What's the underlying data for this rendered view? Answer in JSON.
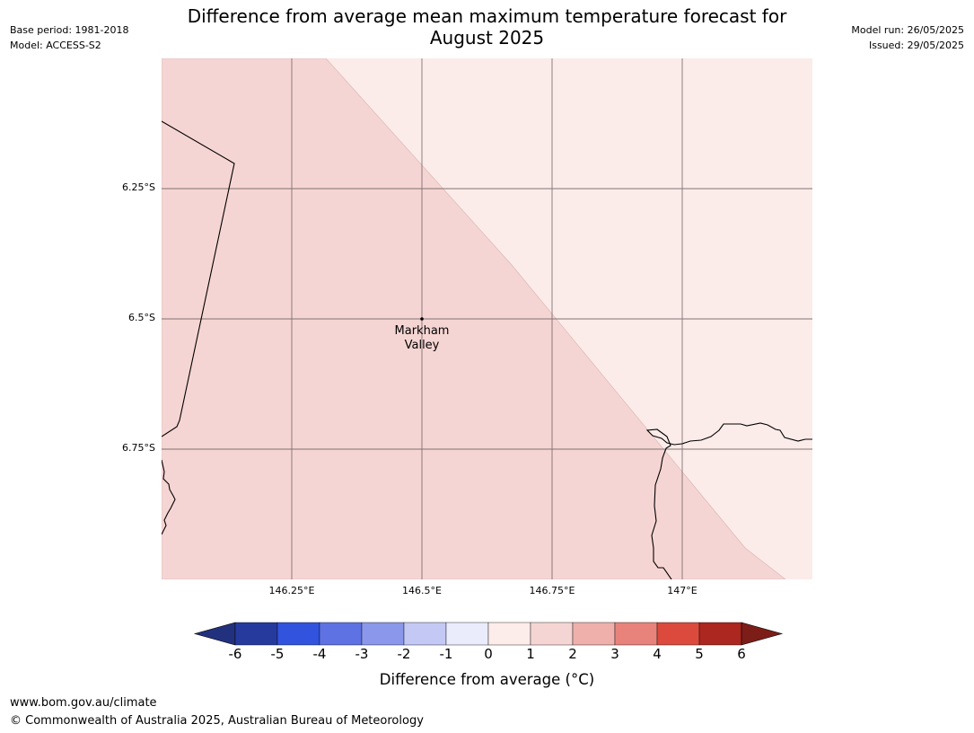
{
  "header": {
    "title_line1": "Difference from average mean maximum temperature forecast for",
    "title_line2": "August 2025",
    "base_period": "Base period: 1981-2018",
    "model": "Model: ACCESS-S2",
    "model_run": "Model run: 26/05/2025",
    "issued": "Issued: 29/05/2025"
  },
  "map": {
    "latitude_labels": [
      "6.25°S",
      "6.5°S",
      "6.75°S"
    ],
    "longitude_labels": [
      "146.25°E",
      "146.5°E",
      "146.75°E",
      "147°E"
    ],
    "place": {
      "name_line1": "Markham",
      "name_line2": "Valley",
      "lat": -6.5,
      "lon": 146.5
    },
    "zones": [
      {
        "range": "1 to 2",
        "color": "#f5d5d3"
      },
      {
        "range": "0 to 1",
        "color": "#fbebe9"
      }
    ]
  },
  "colorbar": {
    "title": "Difference from average (°C)",
    "ticks": [
      "-6",
      "-5",
      "-4",
      "-3",
      "-2",
      "-1",
      "0",
      "1",
      "2",
      "3",
      "4",
      "5",
      "6"
    ],
    "colors": [
      "#263a9e",
      "#3153de",
      "#5e72e3",
      "#8a97ea",
      "#c3c8f4",
      "#eaecfc",
      "#fcecea",
      "#f5d5d3",
      "#efb0ab",
      "#e8837c",
      "#dc4a3e",
      "#ab2720"
    ],
    "extend_low_color": "#22317e",
    "extend_high_color": "#7d1d18"
  },
  "footer": {
    "website": "www.bom.gov.au/climate",
    "copyright": "© Commonwealth of Australia 2025, Australian Bureau of Meteorology"
  }
}
